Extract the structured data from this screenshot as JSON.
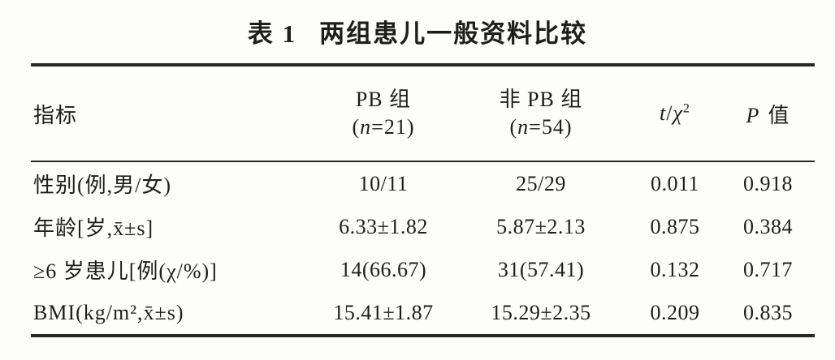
{
  "title": {
    "label": "表 1",
    "text": "两组患儿一般资料比较"
  },
  "table": {
    "indicator_header": "指标",
    "group1": {
      "name": "PB 组",
      "n_open": "(",
      "n_var": "n",
      "n_rest": "=21)"
    },
    "group2": {
      "name": "非 PB 组",
      "n_open": "(",
      "n_var": "n",
      "n_rest": "=54)"
    },
    "stat_header": {
      "t": "t",
      "slash": "/",
      "chi": "χ",
      "sup": "2"
    },
    "p_header": {
      "p": "P",
      "label": "值"
    },
    "rows": [
      {
        "label": "性别(例,男/女)",
        "pb": "10/11",
        "non_pb": "25/29",
        "stat": "0.011",
        "p": "0.918"
      },
      {
        "label": "年龄[岁,x̄±s]",
        "pb": "6.33±1.82",
        "non_pb": "5.87±2.13",
        "stat": "0.875",
        "p": "0.384"
      },
      {
        "label": "≥6 岁患儿[例(χ/%)]",
        "pb": "14(66.67)",
        "non_pb": "31(57.41)",
        "stat": "0.132",
        "p": "0.717"
      },
      {
        "label": "BMI(kg/m²,x̄±s)",
        "pb": "15.41±1.87",
        "non_pb": "15.29±2.35",
        "stat": "0.209",
        "p": "0.835"
      }
    ]
  },
  "colors": {
    "background": "#fdfdfb",
    "text": "#1e1e1e",
    "rule": "#282828"
  }
}
